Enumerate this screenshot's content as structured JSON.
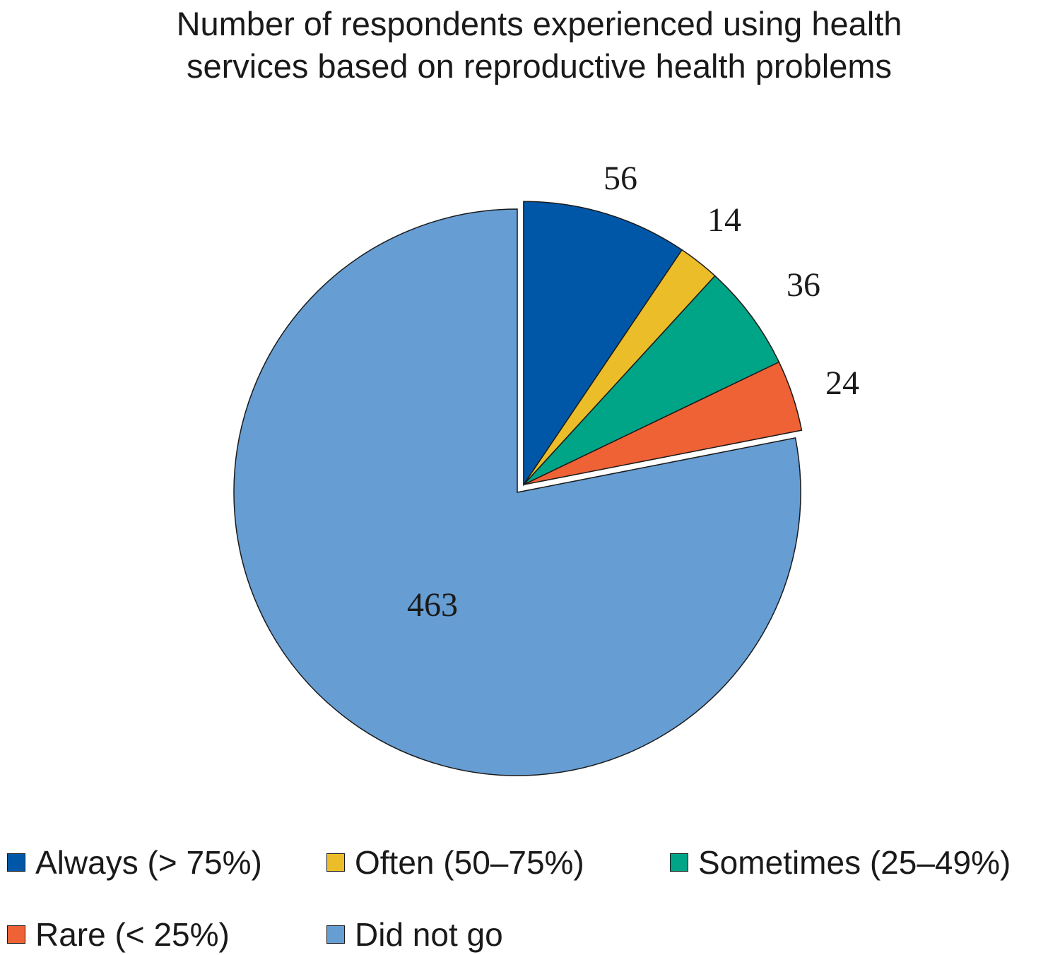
{
  "chart_data": {
    "type": "pie",
    "title": "Number of respondents experienced using health\nservices based on reproductive health problems",
    "slices": [
      {
        "label": "Always (> 75%)",
        "value": 56,
        "color": "#0057a8",
        "exploded": true
      },
      {
        "label": "Often (50–75%)",
        "value": 14,
        "color": "#ebbd29",
        "exploded": true
      },
      {
        "label": "Sometimes (25–49%)",
        "value": 36,
        "color": "#00a487",
        "exploded": true
      },
      {
        "label": "Rare (< 25%)",
        "value": 24,
        "color": "#ee6236",
        "exploded": true
      },
      {
        "label": "Did not go",
        "value": 463,
        "color": "#669dd3",
        "exploded": false
      }
    ],
    "start_angle": "12 o'clock",
    "direction": "clockwise",
    "legend_position": "bottom"
  }
}
